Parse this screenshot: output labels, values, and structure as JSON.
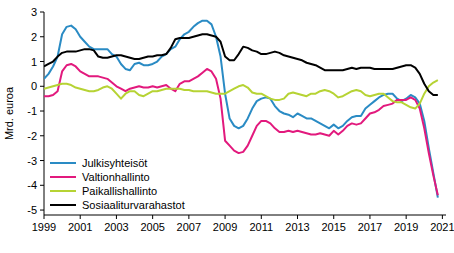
{
  "chart_data": {
    "type": "line",
    "y_label": "Mrd. euroa",
    "x": [
      1999,
      1999.25,
      1999.5,
      1999.75,
      2000,
      2000.25,
      2000.5,
      2000.75,
      2001,
      2001.25,
      2001.5,
      2001.75,
      2002,
      2002.25,
      2002.5,
      2002.75,
      2003,
      2003.25,
      2003.5,
      2003.75,
      2004,
      2004.25,
      2004.5,
      2004.75,
      2005,
      2005.25,
      2005.5,
      2005.75,
      2006,
      2006.25,
      2006.5,
      2006.75,
      2007,
      2007.25,
      2007.5,
      2007.75,
      2008,
      2008.25,
      2008.5,
      2008.75,
      2009,
      2009.25,
      2009.5,
      2009.75,
      2010,
      2010.25,
      2010.5,
      2010.75,
      2011,
      2011.25,
      2011.5,
      2011.75,
      2012,
      2012.25,
      2012.5,
      2012.75,
      2013,
      2013.25,
      2013.5,
      2013.75,
      2014,
      2014.25,
      2014.5,
      2014.75,
      2015,
      2015.25,
      2015.5,
      2015.75,
      2016,
      2016.25,
      2016.5,
      2016.75,
      2017,
      2017.25,
      2017.5,
      2017.75,
      2018,
      2018.25,
      2018.5,
      2018.75,
      2019,
      2019.25,
      2019.5,
      2019.75,
      2020,
      2020.25,
      2020.5,
      2020.75
    ],
    "series": [
      {
        "name": "Julkisyhteisöt",
        "color": "#2a8bc4",
        "values": [
          0.3,
          0.5,
          0.8,
          1.2,
          2.1,
          2.4,
          2.45,
          2.3,
          2.0,
          1.8,
          1.6,
          1.5,
          1.5,
          1.5,
          1.5,
          1.3,
          1.2,
          0.9,
          0.7,
          0.65,
          0.9,
          0.95,
          0.85,
          0.85,
          0.9,
          1.0,
          1.2,
          1.3,
          1.5,
          1.6,
          1.9,
          2.1,
          2.2,
          2.4,
          2.55,
          2.65,
          2.65,
          2.5,
          2.0,
          1.2,
          -0.3,
          -1.3,
          -1.6,
          -1.7,
          -1.6,
          -1.3,
          -0.9,
          -0.6,
          -0.5,
          -0.45,
          -0.5,
          -0.8,
          -1.0,
          -1.1,
          -1.15,
          -1.25,
          -1.1,
          -1.2,
          -1.3,
          -1.3,
          -1.4,
          -1.5,
          -1.6,
          -1.7,
          -1.55,
          -1.7,
          -1.6,
          -1.4,
          -1.25,
          -1.2,
          -1.2,
          -0.9,
          -0.75,
          -0.6,
          -0.45,
          -0.35,
          -0.3,
          -0.3,
          -0.5,
          -0.6,
          -0.5,
          -0.35,
          -0.45,
          -0.7,
          -1.4,
          -2.5,
          -3.5,
          -4.5
        ]
      },
      {
        "name": "Valtionhallinto",
        "color": "#e2197d",
        "values": [
          -0.4,
          -0.4,
          -0.35,
          -0.2,
          0.6,
          0.85,
          0.9,
          0.8,
          0.6,
          0.5,
          0.4,
          0.4,
          0.4,
          0.35,
          0.3,
          0.15,
          0.0,
          -0.1,
          -0.2,
          -0.1,
          -0.05,
          0.0,
          -0.05,
          -0.05,
          0.0,
          -0.05,
          0.0,
          0.05,
          -0.1,
          -0.2,
          0.1,
          0.2,
          0.2,
          0.3,
          0.4,
          0.55,
          0.7,
          0.6,
          0.3,
          -0.5,
          -2.2,
          -2.4,
          -2.6,
          -2.7,
          -2.65,
          -2.4,
          -2.0,
          -1.6,
          -1.4,
          -1.4,
          -1.5,
          -1.7,
          -1.85,
          -1.85,
          -1.8,
          -1.85,
          -1.8,
          -1.85,
          -1.9,
          -1.95,
          -1.95,
          -1.9,
          -1.95,
          -2.0,
          -1.8,
          -1.95,
          -1.8,
          -1.6,
          -1.5,
          -1.55,
          -1.5,
          -1.3,
          -1.1,
          -1.05,
          -0.95,
          -0.8,
          -0.75,
          -0.7,
          -0.55,
          -0.55,
          -0.55,
          -0.45,
          -0.55,
          -0.9,
          -1.7,
          -2.7,
          -3.6,
          -4.4
        ]
      },
      {
        "name": "Paikallishallinto",
        "color": "#b6d334",
        "values": [
          -0.1,
          -0.05,
          0.0,
          0.05,
          0.1,
          0.1,
          0.05,
          -0.05,
          -0.1,
          -0.15,
          -0.2,
          -0.2,
          -0.15,
          -0.05,
          0.0,
          -0.1,
          -0.3,
          -0.5,
          -0.3,
          -0.2,
          -0.2,
          -0.35,
          -0.4,
          -0.3,
          -0.2,
          -0.2,
          -0.15,
          -0.1,
          -0.1,
          -0.1,
          -0.1,
          -0.15,
          -0.15,
          -0.2,
          -0.2,
          -0.2,
          -0.2,
          -0.25,
          -0.3,
          -0.3,
          -0.3,
          -0.2,
          -0.1,
          0.0,
          0.05,
          -0.05,
          -0.25,
          -0.3,
          -0.3,
          -0.4,
          -0.5,
          -0.55,
          -0.55,
          -0.5,
          -0.3,
          -0.25,
          -0.3,
          -0.35,
          -0.4,
          -0.3,
          -0.3,
          -0.2,
          -0.15,
          -0.2,
          -0.3,
          -0.45,
          -0.4,
          -0.3,
          -0.2,
          -0.15,
          -0.2,
          -0.35,
          -0.4,
          -0.35,
          -0.3,
          -0.3,
          -0.45,
          -0.6,
          -0.65,
          -0.65,
          -0.75,
          -0.85,
          -0.9,
          -0.7,
          -0.3,
          0.0,
          0.15,
          0.25
        ]
      },
      {
        "name": "Sosiaaliturvarahastot",
        "color": "#000000",
        "values": [
          0.8,
          0.9,
          1.0,
          1.2,
          1.35,
          1.4,
          1.4,
          1.4,
          1.45,
          1.5,
          1.5,
          1.45,
          1.2,
          1.15,
          1.15,
          1.2,
          1.25,
          1.25,
          1.2,
          1.15,
          1.1,
          1.1,
          1.15,
          1.2,
          1.2,
          1.25,
          1.25,
          1.3,
          1.55,
          1.9,
          1.95,
          1.95,
          1.95,
          2.0,
          2.05,
          2.1,
          2.1,
          2.05,
          2.0,
          1.8,
          1.2,
          1.05,
          1.05,
          1.3,
          1.6,
          1.55,
          1.45,
          1.4,
          1.3,
          1.3,
          1.35,
          1.4,
          1.35,
          1.25,
          1.2,
          1.15,
          1.1,
          1.05,
          0.95,
          0.9,
          0.85,
          0.75,
          0.65,
          0.65,
          0.65,
          0.65,
          0.65,
          0.7,
          0.75,
          0.7,
          0.75,
          0.75,
          0.75,
          0.7,
          0.7,
          0.7,
          0.7,
          0.7,
          0.75,
          0.8,
          0.85,
          0.85,
          0.75,
          0.5,
          0.1,
          -0.2,
          -0.35,
          -0.35
        ]
      }
    ],
    "xlim": [
      1999,
      2021.2
    ],
    "xticks": [
      1999,
      2001,
      2003,
      2005,
      2007,
      2009,
      2011,
      2013,
      2015,
      2017,
      2019,
      2021
    ],
    "ylim": [
      -5.2,
      3
    ],
    "yticks": [
      -5,
      -4,
      -3,
      -2,
      -1,
      0,
      1,
      2,
      3
    ],
    "grid": false,
    "legend": "lower left"
  }
}
